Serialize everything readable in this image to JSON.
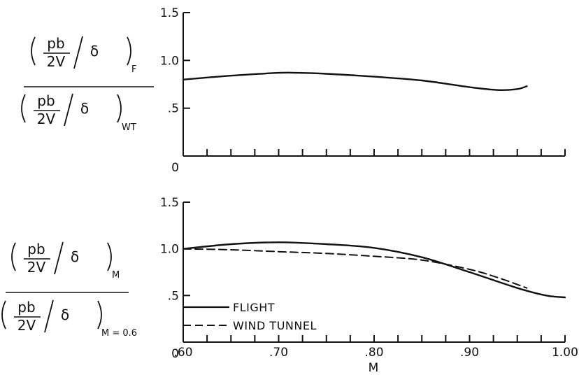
{
  "chart_data": [
    {
      "type": "line",
      "ylabel_numerator": "pb/2V/δ",
      "ylabel_numerator_subscript": "F",
      "ylabel_denominator": "pb/2V/δ",
      "ylabel_denominator_subscript": "WT",
      "xlim": [
        0.6,
        1.0
      ],
      "ylim": [
        0,
        1.5
      ],
      "yticks": [
        0,
        0.5,
        1.0,
        1.5
      ],
      "ytick_labels": [
        "0",
        ".5",
        "1.0",
        "1.5"
      ],
      "series": [
        {
          "style": "solid",
          "x": [
            0.6,
            0.65,
            0.7,
            0.72,
            0.75,
            0.8,
            0.85,
            0.9,
            0.93,
            0.95,
            0.96
          ],
          "y": [
            0.8,
            0.84,
            0.87,
            0.87,
            0.86,
            0.83,
            0.79,
            0.72,
            0.69,
            0.7,
            0.73
          ]
        }
      ]
    },
    {
      "type": "line",
      "xlabel": "M",
      "ylabel_numerator": "pb/2V/δ",
      "ylabel_numerator_subscript": "M",
      "ylabel_denominator": "pb/2V/δ",
      "ylabel_denominator_subscript": "M = 0.6",
      "xlim": [
        0.6,
        1.0
      ],
      "ylim": [
        0,
        1.5
      ],
      "yticks": [
        0,
        0.5,
        1.0,
        1.5
      ],
      "ytick_labels": [
        "0",
        ".5",
        "1.0",
        "1.5"
      ],
      "xticks": [
        0.6,
        0.7,
        0.8,
        0.9,
        1.0
      ],
      "xtick_labels": [
        ".60",
        ".70",
        ".80",
        ".90",
        "1.00"
      ],
      "legend": {
        "placement": "bottom-left",
        "entries": [
          {
            "label": "FLIGHT",
            "style": "solid"
          },
          {
            "label": "WIND TUNNEL",
            "style": "dashed"
          }
        ]
      },
      "series": [
        {
          "name": "FLIGHT",
          "style": "solid",
          "x": [
            0.6,
            0.65,
            0.7,
            0.75,
            0.8,
            0.85,
            0.9,
            0.95,
            0.98,
            1.0
          ],
          "y": [
            1.0,
            1.05,
            1.07,
            1.05,
            1.01,
            0.91,
            0.75,
            0.58,
            0.5,
            0.48
          ]
        },
        {
          "name": "WIND TUNNEL",
          "style": "dashed",
          "x": [
            0.6,
            0.65,
            0.7,
            0.75,
            0.8,
            0.85,
            0.9,
            0.93,
            0.96
          ],
          "y": [
            1.0,
            0.99,
            0.97,
            0.95,
            0.92,
            0.88,
            0.78,
            0.69,
            0.58
          ]
        }
      ]
    }
  ],
  "colors": {
    "ink": "#111111",
    "background": "#ffffff"
  }
}
